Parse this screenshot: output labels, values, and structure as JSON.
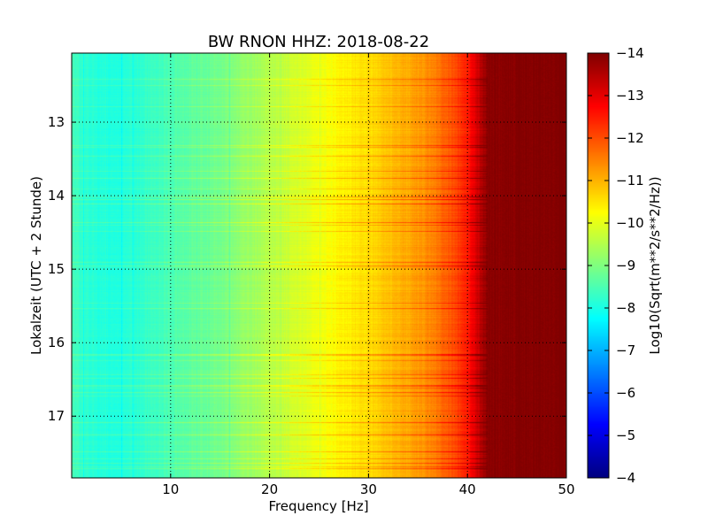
{
  "chart_data": {
    "type": "heatmap",
    "title": "BW RNON HHZ: 2018-08-22",
    "xlabel": "Frequency [Hz]",
    "ylabel": "Lokalzeit (UTC + 2 Stunde)",
    "xlim": [
      0,
      50
    ],
    "ylim": [
      12.06,
      17.84
    ],
    "y_inverted": true,
    "xticks": [
      10,
      20,
      30,
      40,
      50
    ],
    "yticks": [
      13,
      14,
      15,
      16,
      17
    ],
    "grid": true,
    "colormap": "jet",
    "colorbar": {
      "label": "Log10(Sqrt(m**2/s**2/Hz))",
      "range": [
        -14,
        -4
      ],
      "ticks": [
        -4,
        -5,
        -6,
        -7,
        -8,
        -9,
        -10,
        -11,
        -12,
        -13,
        -14
      ]
    },
    "value_profile": {
      "frequency_hz": [
        0,
        2,
        5,
        8,
        10,
        15,
        20,
        25,
        30,
        35,
        38,
        40,
        41,
        42,
        50
      ],
      "log10_amplitude": [
        -8.4,
        -8.1,
        -8.1,
        -8.3,
        -8.5,
        -8.9,
        -9.5,
        -10.1,
        -10.6,
        -11.2,
        -11.8,
        -12.5,
        -13.2,
        -13.9,
        -14.0
      ]
    },
    "persistent_lines_hz": [
      1.2,
      5.0,
      6.2,
      15.9,
      21.1,
      25.0
    ]
  }
}
